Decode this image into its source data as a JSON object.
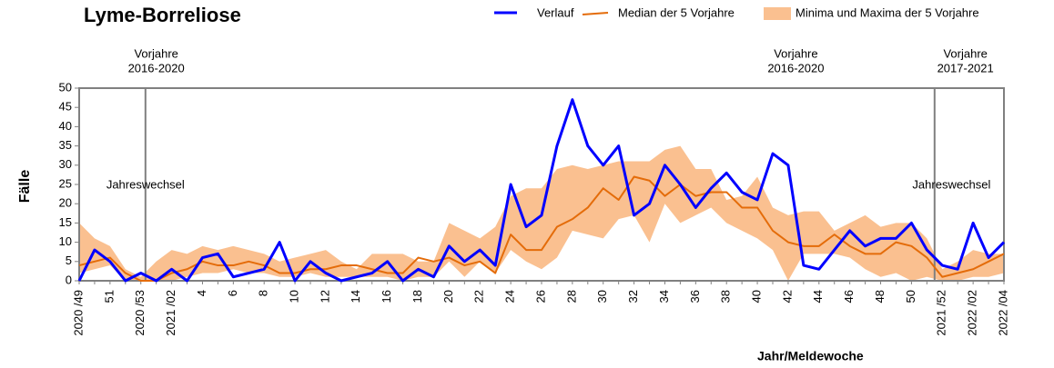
{
  "chart_data": {
    "type": "line",
    "title": "Lyme-Borreliose",
    "x_label": "Jahr/Meldewoche",
    "y_label": "Fälle",
    "categories": [
      "2020 /49",
      null,
      "51",
      null,
      "2020 /53",
      null,
      "2021 /02",
      null,
      "4",
      null,
      "6",
      null,
      "8",
      null,
      "10",
      null,
      "12",
      null,
      "14",
      null,
      "16",
      null,
      "18",
      null,
      "20",
      null,
      "22",
      null,
      "24",
      null,
      "26",
      null,
      "28",
      null,
      "30",
      null,
      "32",
      null,
      "34",
      null,
      "36",
      null,
      "38",
      null,
      "40",
      null,
      "42",
      null,
      "44",
      null,
      "46",
      null,
      "48",
      null,
      "50",
      null,
      "2021 /52",
      null,
      "2022 /02",
      null,
      "2022 /04"
    ],
    "series": [
      {
        "name": "Verlauf",
        "color": "#0000ff",
        "values": [
          0,
          8,
          5,
          0,
          2,
          0,
          3,
          0,
          6,
          7,
          1,
          2,
          3,
          10,
          0,
          5,
          2,
          0,
          1,
          2,
          5,
          0,
          3,
          1,
          9,
          5,
          8,
          4,
          25,
          14,
          17,
          35,
          47,
          35,
          30,
          35,
          17,
          20,
          30,
          25,
          19,
          24,
          28,
          23,
          21,
          33,
          30,
          4,
          3,
          8,
          13,
          9,
          11,
          11,
          15,
          8,
          4,
          3,
          15,
          6,
          10
        ]
      },
      {
        "name": "Median der 5 Vorjahre",
        "color": "#e46c0a",
        "values": [
          4,
          5,
          6,
          2,
          0,
          0,
          2,
          3,
          5,
          4,
          4,
          5,
          4,
          2,
          2,
          3,
          3,
          4,
          4,
          3,
          2,
          2,
          6,
          5,
          6,
          4,
          5,
          2,
          12,
          8,
          8,
          14,
          16,
          19,
          24,
          21,
          27,
          26,
          22,
          25,
          22,
          23,
          23,
          19,
          19,
          13,
          10,
          9,
          9,
          12,
          9,
          7,
          7,
          10,
          9,
          6,
          1,
          2,
          3,
          5,
          7
        ]
      },
      {
        "name": "Minima und Maxima der 5 Vorjahre",
        "color": "#fac090",
        "type": "band",
        "max": [
          15,
          11,
          9,
          3,
          1,
          5,
          8,
          7,
          9,
          8,
          9,
          8,
          7,
          5,
          6,
          7,
          8,
          5,
          3,
          7,
          7,
          7,
          5,
          5,
          15,
          13,
          11,
          14,
          22,
          24,
          24,
          29,
          30,
          29,
          30,
          31,
          31,
          31,
          34,
          35,
          29,
          29,
          21,
          22,
          27,
          19,
          17,
          18,
          18,
          13,
          15,
          17,
          14,
          15,
          15,
          11,
          3,
          5,
          8,
          7,
          7
        ],
        "min": [
          2,
          3,
          4,
          0,
          0,
          0,
          0,
          1,
          2,
          2,
          3,
          2,
          2,
          1,
          1,
          2,
          1,
          1,
          1,
          1,
          1,
          0,
          1,
          1,
          5,
          1,
          5,
          2,
          8,
          5,
          3,
          6,
          13,
          12,
          11,
          16,
          17,
          10,
          20,
          15,
          17,
          19,
          15,
          13,
          11,
          8,
          0,
          7,
          7,
          7,
          6,
          3,
          1,
          2,
          0,
          1,
          0,
          0,
          1,
          1,
          2
        ]
      }
    ],
    "ylim": [
      0,
      50
    ],
    "yticks": [
      0,
      5,
      10,
      15,
      20,
      25,
      30,
      35,
      40,
      45,
      50
    ],
    "annotations": [
      "Vorjahre",
      "2016-2020",
      "Vorjahre",
      "2016-2020",
      "Vorjahre",
      "2017-2021",
      "Jahreswechsel",
      "Jahreswechsel"
    ]
  }
}
